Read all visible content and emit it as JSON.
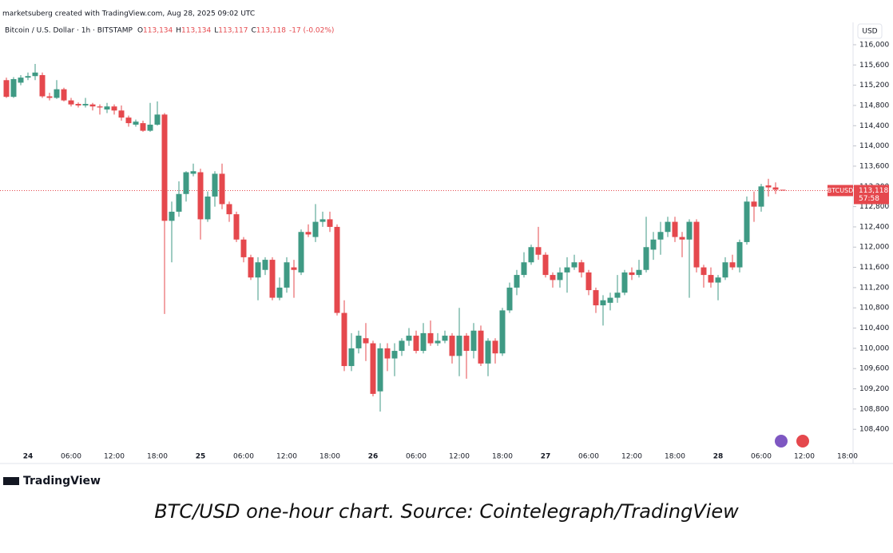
{
  "header": {
    "created": "marketsuberg created with TradingView.com, Aug 28, 2025 09:02 UTC"
  },
  "chart_data": {
    "type": "candlestick",
    "legend": {
      "symbol": "Bitcoin / U.S. Dollar · 1h · BITSTAMP",
      "ohlc": [
        {
          "label": "O",
          "value": "113,134"
        },
        {
          "label": "H",
          "value": "113,134"
        },
        {
          "label": "L",
          "value": "113,117"
        },
        {
          "label": "C",
          "value": "113,118"
        }
      ],
      "change": "-17 (-0.02%)"
    },
    "currency": "USD",
    "up_color": "#3f9a84",
    "down_color": "#e5484d",
    "categories": [
      null,
      null,
      null,
      "24",
      null,
      null,
      null,
      null,
      null,
      "06:00",
      null,
      null,
      null,
      null,
      null,
      "12:00",
      null,
      null,
      null,
      null,
      null,
      "18:00",
      null,
      null,
      null,
      null,
      null,
      "25",
      null,
      null,
      null,
      null,
      null,
      "06:00",
      null,
      null,
      null,
      null,
      null,
      "12:00",
      null,
      null,
      null,
      null,
      null,
      "18:00",
      null,
      null,
      null,
      null,
      null,
      "26",
      null,
      null,
      null,
      null,
      null,
      "06:00",
      null,
      null,
      null,
      null,
      null,
      "12:00",
      null,
      null,
      null,
      null,
      null,
      "18:00",
      null,
      null,
      null,
      null,
      null,
      "27",
      null,
      null,
      null,
      null,
      null,
      "06:00",
      null,
      null,
      null,
      null,
      null,
      "12:00",
      null,
      null,
      null,
      null,
      null,
      "18:00",
      null,
      null,
      null,
      null,
      null,
      "28",
      null,
      null,
      null,
      null,
      null,
      "06:00",
      null,
      null,
      null,
      null,
      null,
      "12:00",
      null,
      null,
      null,
      null,
      null,
      "18:00"
    ],
    "open": [
      115300,
      114970,
      115250,
      115350,
      115380,
      115400,
      114980,
      114950,
      115120,
      114900,
      114830,
      114800,
      114820,
      114780,
      114720,
      114780,
      114700,
      114560,
      114420,
      114450,
      114300,
      114420,
      114620,
      112520,
      112700,
      113050,
      113450,
      113480,
      112550,
      113000,
      113450,
      112850,
      112650,
      112150,
      111800,
      111400,
      111550,
      111750,
      111000,
      111200,
      111600,
      111500,
      112300,
      112200,
      112500,
      112550,
      112400,
      110700,
      109650,
      110000,
      110200,
      110100,
      109150,
      110000,
      109800,
      109950,
      110150,
      110250,
      109950,
      110300,
      110100,
      110150,
      110250,
      109850,
      110250,
      109950,
      110350,
      109700,
      110150,
      109900,
      110750,
      111200,
      111450,
      111700,
      112000,
      111850,
      111450,
      111350,
      111500,
      111600,
      111700,
      111500,
      111150,
      110850,
      110900,
      111000,
      111100,
      111500,
      111450,
      111550,
      111950,
      112150,
      112300,
      112500,
      112200,
      112150,
      112500,
      111600,
      111450,
      111300,
      111400,
      111700,
      111600,
      112100,
      112900,
      112800,
      113220,
      113180,
      113134,
      null,
      null,
      null,
      null,
      null,
      null,
      null,
      null,
      null
    ],
    "high": [
      115350,
      115360,
      115400,
      115450,
      115620,
      115450,
      115050,
      115300,
      115150,
      114950,
      114860,
      114950,
      114850,
      114820,
      114850,
      114820,
      114800,
      114600,
      114520,
      114500,
      114850,
      114880,
      114650,
      112900,
      113300,
      113500,
      113650,
      113550,
      113100,
      113500,
      113650,
      112900,
      112700,
      112200,
      111850,
      111800,
      111800,
      111800,
      111400,
      111800,
      111750,
      112350,
      112450,
      112850,
      112700,
      112700,
      112450,
      110950,
      110300,
      110350,
      110500,
      110150,
      110100,
      110100,
      110100,
      110200,
      110400,
      110350,
      110500,
      110550,
      110300,
      110350,
      110300,
      110800,
      110300,
      110500,
      110450,
      110200,
      110200,
      110800,
      111300,
      111550,
      111900,
      112050,
      112400,
      111900,
      111500,
      111600,
      111800,
      111850,
      111750,
      111550,
      111200,
      111050,
      111100,
      111450,
      111550,
      111600,
      111750,
      112600,
      112300,
      112500,
      112600,
      112600,
      112300,
      112550,
      112550,
      111650,
      111600,
      111450,
      111800,
      111850,
      112150,
      113000,
      113100,
      113250,
      113350,
      113280,
      113134,
      null,
      null,
      null,
      null,
      null,
      null,
      null,
      null,
      null
    ],
    "low": [
      114950,
      114950,
      115200,
      115300,
      115300,
      114950,
      114900,
      114930,
      114880,
      114780,
      114760,
      114760,
      114700,
      114620,
      114650,
      114620,
      114500,
      114380,
      114380,
      114280,
      114280,
      114400,
      110680,
      111700,
      112600,
      112900,
      113400,
      112150,
      112500,
      112800,
      112750,
      112500,
      112100,
      111700,
      111350,
      110950,
      111450,
      110950,
      110950,
      111100,
      111000,
      111450,
      112200,
      112100,
      112400,
      112300,
      110650,
      109550,
      109550,
      109900,
      109750,
      109050,
      108750,
      109550,
      109450,
      109850,
      110050,
      109900,
      109900,
      110050,
      110050,
      110100,
      109700,
      109450,
      109400,
      109800,
      109650,
      109450,
      109700,
      109850,
      110700,
      111050,
      111400,
      111650,
      111750,
      111400,
      111200,
      111200,
      111100,
      111550,
      111400,
      111050,
      110700,
      110450,
      110750,
      110900,
      111050,
      111350,
      111400,
      111500,
      111750,
      111850,
      112200,
      112100,
      111800,
      111000,
      111500,
      111200,
      111200,
      110950,
      111350,
      111550,
      111500,
      112050,
      112500,
      112700,
      113000,
      113050,
      113117,
      null,
      null,
      null,
      null,
      null,
      null,
      null,
      null,
      null
    ],
    "close": [
      114970,
      115320,
      115350,
      115380,
      115450,
      114980,
      114950,
      115120,
      114900,
      114820,
      114800,
      114830,
      114780,
      114760,
      114780,
      114700,
      114560,
      114450,
      114480,
      114300,
      114420,
      114620,
      112520,
      112700,
      113050,
      113480,
      113500,
      112550,
      113000,
      113450,
      112850,
      112650,
      112150,
      111800,
      111400,
      111700,
      111750,
      111000,
      111200,
      111700,
      111550,
      112300,
      112250,
      112500,
      112550,
      112400,
      110700,
      109650,
      110000,
      110250,
      110100,
      109100,
      110000,
      109800,
      109950,
      110150,
      110250,
      109950,
      110300,
      110100,
      110150,
      110250,
      109850,
      110250,
      109950,
      110350,
      109700,
      110150,
      109900,
      110750,
      111200,
      111450,
      111700,
      112000,
      111850,
      111450,
      111350,
      111500,
      111600,
      111700,
      111500,
      111150,
      110850,
      110950,
      111000,
      111100,
      111500,
      111450,
      111550,
      112000,
      112150,
      112300,
      112500,
      112200,
      112150,
      112500,
      111600,
      111450,
      111300,
      111400,
      111700,
      111600,
      112100,
      112900,
      112800,
      113200,
      113180,
      113135,
      113118,
      null,
      null,
      null,
      null,
      null,
      null,
      null,
      null,
      null
    ],
    "price_line": {
      "name": "BTCUSD",
      "value": 113118,
      "label": "113,118",
      "countdown": "57:58"
    },
    "ylim": [
      108040,
      116410
    ],
    "yticks": [
      {
        "value": 108400,
        "label": "108,400"
      },
      {
        "value": 108800,
        "label": "108,800"
      },
      {
        "value": 109200,
        "label": "109,200"
      },
      {
        "value": 109600,
        "label": "109,600"
      },
      {
        "value": 110000,
        "label": "110,000"
      },
      {
        "value": 110400,
        "label": "110,400"
      },
      {
        "value": 110800,
        "label": "110,800"
      },
      {
        "value": 111200,
        "label": "111,200"
      },
      {
        "value": 111600,
        "label": "111,600"
      },
      {
        "value": 112000,
        "label": "112,000"
      },
      {
        "value": 112400,
        "label": "112,400"
      },
      {
        "value": 112800,
        "label": "112,800"
      },
      {
        "value": 113200,
        "label": "113,200"
      },
      {
        "value": 113600,
        "label": "113,600"
      },
      {
        "value": 114000,
        "label": "114,000"
      },
      {
        "value": 114400,
        "label": "114,400"
      },
      {
        "value": 114800,
        "label": "114,800"
      },
      {
        "value": 115200,
        "label": "115,200"
      },
      {
        "value": 115600,
        "label": "115,600"
      },
      {
        "value": 116000,
        "label": "116,000"
      }
    ],
    "grid": false
  },
  "footer": {
    "brand": "TradingView",
    "caption": "BTC/USD one-hour chart. Source: Cointelegraph/TradingView"
  }
}
